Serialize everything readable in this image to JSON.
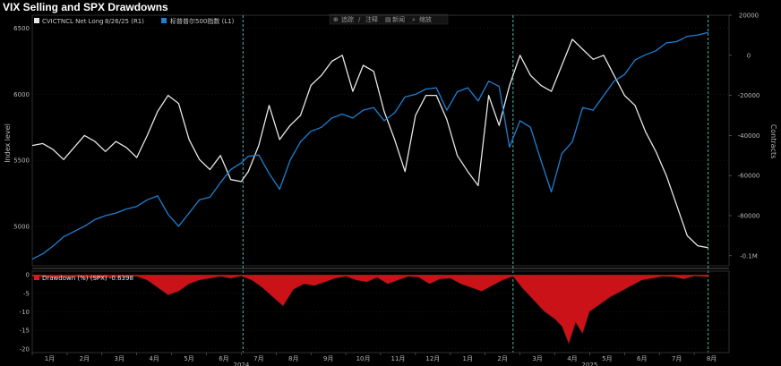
{
  "page_title": "VIX Selling and SPX Drawdowns",
  "toolbar": {
    "items": [
      "追踪",
      "注释",
      "新闻",
      "缩放"
    ]
  },
  "legend": {
    "vix_label": "CVICTNCL Net Long",
    "date_label": "8/26/25 (R1)",
    "spx_label": "标普普尔500指数 (L1)"
  },
  "drawdown_legend": "Drawdown (%) (SPX) -0.6398",
  "colors": {
    "background": "#000000",
    "spx_line": "#1f7fd1",
    "vix_line": "#e6e6e6",
    "drawdown_fill": "#e0141b",
    "marker_line": "#4fb3a8",
    "grid": "#2b2b2b"
  },
  "chart_data": [
    {
      "type": "line",
      "title": "VIX Selling and SPX Drawdowns",
      "ylabel": "Index level",
      "y2label": "Contracts",
      "ylim": [
        4700,
        6600
      ],
      "y2lim": [
        -105000,
        20000
      ],
      "yticks": [
        5000,
        5500,
        6000,
        6500
      ],
      "y2ticks": [
        {
          "value": 20000,
          "label": "20000"
        },
        {
          "value": 0,
          "label": "0"
        },
        {
          "value": -20000,
          "label": "-20000"
        },
        {
          "value": -40000,
          "label": "-40000"
        },
        {
          "value": -60000,
          "label": "-60000"
        },
        {
          "value": -80000,
          "label": "-80000"
        },
        {
          "value": -100000,
          "label": "-0.1M"
        }
      ],
      "xlim": [
        0,
        20
      ],
      "month_labels": [
        "1月",
        "2月",
        "3月",
        "4月",
        "5月",
        "6月",
        "7月",
        "8月",
        "9月",
        "10月",
        "11月",
        "12月",
        "1月",
        "2月",
        "3月",
        "4月",
        "5月",
        "6月",
        "7月",
        "8月"
      ],
      "year_labels": [
        {
          "x": 6,
          "label": "2024"
        },
        {
          "x": 16,
          "label": "2025"
        }
      ],
      "markers_x": [
        6.05,
        13.8,
        19.4
      ],
      "series": [
        {
          "name": "CVICTNCL Net Long",
          "axis": "right",
          "x": [
            0,
            0.3,
            0.6,
            0.9,
            1.2,
            1.5,
            1.8,
            2.1,
            2.4,
            2.7,
            3.0,
            3.3,
            3.6,
            3.9,
            4.2,
            4.5,
            4.8,
            5.1,
            5.4,
            5.7,
            6.0,
            6.2,
            6.5,
            6.8,
            7.1,
            7.4,
            7.7,
            8.0,
            8.3,
            8.6,
            8.9,
            9.2,
            9.5,
            9.8,
            10.1,
            10.4,
            10.7,
            11.0,
            11.3,
            11.6,
            11.9,
            12.2,
            12.5,
            12.8,
            13.1,
            13.4,
            13.7,
            14.0,
            14.3,
            14.6,
            14.9,
            15.2,
            15.5,
            15.8,
            16.1,
            16.4,
            16.7,
            17.0,
            17.3,
            17.6,
            17.9,
            18.2,
            18.5,
            18.8,
            19.1,
            19.4
          ],
          "values": [
            -45000,
            -44000,
            -47000,
            -52000,
            -46000,
            -40000,
            -43000,
            -48000,
            -43000,
            -46000,
            -51000,
            -40000,
            -28000,
            -20000,
            -24000,
            -42000,
            -52000,
            -57000,
            -50000,
            -62000,
            -63000,
            -58000,
            -45000,
            -25000,
            -42000,
            -35000,
            -30000,
            -15000,
            -10000,
            -3000,
            0,
            -18000,
            -5000,
            -8000,
            -28000,
            -42000,
            -58000,
            -30000,
            -20000,
            -20000,
            -32000,
            -50000,
            -58000,
            -65000,
            -20000,
            -35000,
            -15000,
            0,
            -10000,
            -15000,
            -18000,
            -5000,
            8000,
            3000,
            -2000,
            0,
            -10000,
            -20000,
            -25000,
            -38000,
            -48000,
            -60000,
            -75000,
            -90000,
            -95000,
            -96000
          ]
        },
        {
          "name": "标普普尔500指数",
          "axis": "left",
          "x": [
            0,
            0.3,
            0.6,
            0.9,
            1.2,
            1.5,
            1.8,
            2.1,
            2.4,
            2.7,
            3.0,
            3.3,
            3.6,
            3.9,
            4.2,
            4.5,
            4.8,
            5.1,
            5.4,
            5.7,
            6.0,
            6.2,
            6.5,
            6.8,
            7.1,
            7.4,
            7.7,
            8.0,
            8.3,
            8.6,
            8.9,
            9.2,
            9.5,
            9.8,
            10.1,
            10.4,
            10.7,
            11.0,
            11.3,
            11.6,
            11.9,
            12.2,
            12.5,
            12.8,
            13.1,
            13.4,
            13.7,
            14.0,
            14.3,
            14.6,
            14.9,
            15.2,
            15.5,
            15.8,
            16.1,
            16.4,
            16.7,
            17.0,
            17.3,
            17.6,
            17.9,
            18.2,
            18.5,
            18.8,
            19.1,
            19.4
          ],
          "values": [
            4750,
            4790,
            4850,
            4920,
            4960,
            5000,
            5050,
            5080,
            5100,
            5130,
            5150,
            5200,
            5230,
            5090,
            5000,
            5100,
            5200,
            5220,
            5330,
            5430,
            5480,
            5530,
            5540,
            5400,
            5280,
            5500,
            5640,
            5720,
            5750,
            5820,
            5850,
            5820,
            5880,
            5900,
            5800,
            5860,
            5980,
            6000,
            6040,
            6050,
            5880,
            6020,
            6050,
            5950,
            6100,
            6060,
            5600,
            5800,
            5750,
            5500,
            5260,
            5550,
            5640,
            5900,
            5880,
            5990,
            6100,
            6150,
            6260,
            6300,
            6330,
            6390,
            6400,
            6440,
            6450,
            6470
          ]
        }
      ]
    },
    {
      "type": "area",
      "name": "Drawdown (%) (SPX)",
      "ylim": [
        -21,
        1
      ],
      "yticks": [
        0,
        -5,
        -10,
        -15,
        -20
      ],
      "xlim": [
        0,
        20
      ],
      "x": [
        0,
        0.6,
        1.2,
        1.8,
        2.4,
        3.0,
        3.3,
        3.6,
        3.9,
        4.2,
        4.5,
        4.8,
        5.1,
        5.4,
        5.7,
        6.0,
        6.3,
        6.6,
        6.9,
        7.2,
        7.5,
        7.8,
        8.1,
        8.4,
        8.7,
        9.0,
        9.3,
        9.6,
        9.9,
        10.2,
        10.5,
        10.8,
        11.1,
        11.4,
        11.7,
        12.0,
        12.3,
        12.6,
        12.9,
        13.2,
        13.5,
        13.8,
        14.1,
        14.4,
        14.7,
        15.0,
        15.2,
        15.4,
        15.6,
        15.8,
        16.0,
        16.3,
        16.6,
        16.9,
        17.2,
        17.5,
        17.8,
        18.1,
        18.4,
        18.7,
        19.0,
        19.4
      ],
      "values": [
        -0.5,
        -0.8,
        -0.6,
        -1.0,
        -0.7,
        -0.5,
        -1.5,
        -3.5,
        -5.5,
        -4.5,
        -2.5,
        -1.5,
        -1.0,
        -0.5,
        -1.0,
        -0.4,
        -1.5,
        -3.5,
        -6.0,
        -8.5,
        -4.0,
        -2.5,
        -3.0,
        -2.0,
        -1.0,
        -0.5,
        -1.5,
        -2.0,
        -0.8,
        -2.5,
        -1.5,
        -0.5,
        -0.8,
        -2.5,
        -1.2,
        -1.0,
        -2.5,
        -3.5,
        -4.5,
        -3.0,
        -1.5,
        -0.5,
        -4.0,
        -7.0,
        -10.0,
        -12.0,
        -14.0,
        -18.8,
        -13.0,
        -16.0,
        -10.0,
        -8.0,
        -6.0,
        -4.5,
        -3.0,
        -1.5,
        -1.0,
        -0.5,
        -0.6,
        -1.2,
        -0.4,
        -0.6
      ]
    }
  ]
}
